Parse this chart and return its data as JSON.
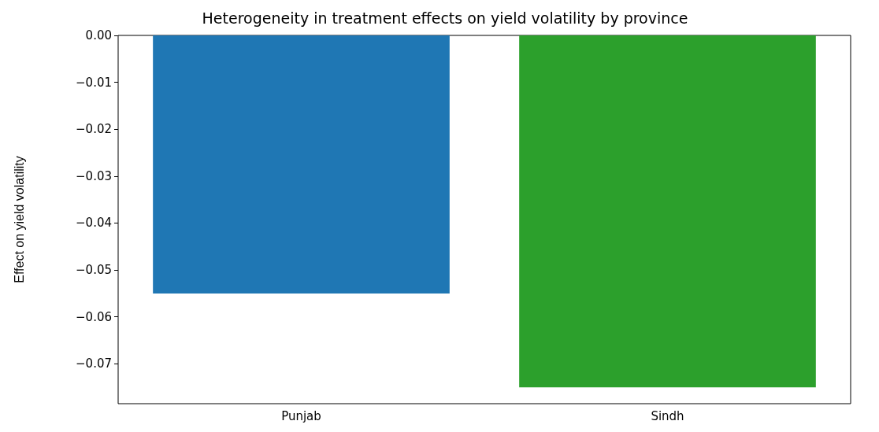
{
  "chart_data": {
    "type": "bar",
    "title": "Heterogeneity in treatment effects on yield volatility by province",
    "ylabel": "Effect on yield volatility",
    "categories": [
      "Punjab",
      "Sindh"
    ],
    "values": [
      -0.055,
      -0.075
    ],
    "colors": [
      "#1f77b4",
      "#2ca02c"
    ],
    "ylim": [
      -0.0785,
      0
    ],
    "yticks": [
      {
        "value": 0,
        "label": "0.00"
      },
      {
        "value": -0.01,
        "label": "−0.01"
      },
      {
        "value": -0.02,
        "label": "−0.02"
      },
      {
        "value": -0.03,
        "label": "−0.03"
      },
      {
        "value": -0.04,
        "label": "−0.04"
      },
      {
        "value": -0.05,
        "label": "−0.05"
      },
      {
        "value": -0.06,
        "label": "−0.06"
      },
      {
        "value": -0.07,
        "label": "−0.07"
      }
    ],
    "grid": false
  }
}
